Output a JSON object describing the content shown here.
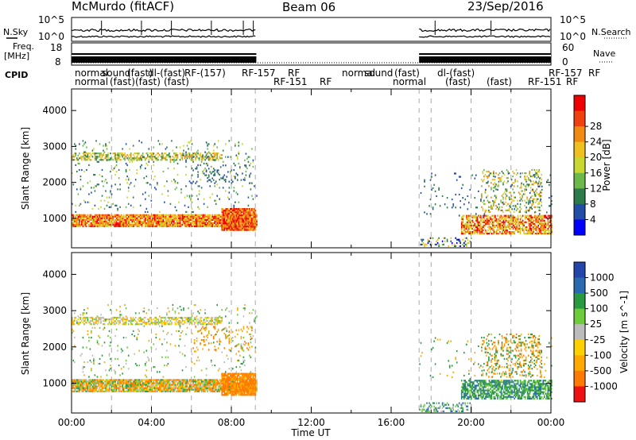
{
  "header": {
    "station": "McMurdo (fitACF)",
    "beam": "Beam 06",
    "date": "23/Sep/2016"
  },
  "side_labels": {
    "nsky": "N.Sky",
    "nsearch": "N.Search",
    "freq_l1": "Freq.",
    "freq_l2": "[MHz]",
    "nave": "Nave",
    "cpid": "CPID",
    "exp_top": "10^5",
    "exp_bot": "10^0"
  },
  "noise_panel": {
    "left_ticks": [
      "10^5",
      "10^0"
    ],
    "right_ticks": [
      "10^5",
      "10^0"
    ]
  },
  "freq_panel": {
    "left_ticks": [
      "18",
      "8"
    ],
    "right_ticks": [
      "60",
      "0"
    ]
  },
  "cpid_rows": {
    "row1": [
      "normal",
      "sound",
      "(fast)",
      "dl-(fast)",
      "RF-(157)",
      "RF-157",
      "RF",
      "normal",
      "sound",
      "(fast)",
      "dl-(fast)",
      "RF-157",
      "RF"
    ],
    "row2": [
      "normal",
      "(fast)",
      "(fast)",
      "(fast)",
      "RF-151",
      "RF",
      "normal",
      "(fast)",
      "(fast)",
      "RF-151",
      "RF"
    ]
  },
  "colors": {
    "power_scale": [
      "#0000ff",
      "#224ea8",
      "#2d7a4a",
      "#6cb84a",
      "#c8d830",
      "#f0c020",
      "#f08a10",
      "#f04010",
      "#ee0000"
    ],
    "velocity_scale": [
      "#ee1111",
      "#ff7a00",
      "#ffa800",
      "#ffd000",
      "#bcbcbc",
      "#6dcc3a",
      "#2a9a40",
      "#2a6ab0",
      "#2246aa"
    ]
  },
  "chart_data": [
    {
      "type": "heatmap",
      "title": "Power",
      "xlabel": "Time UT",
      "ylabel": "Slant Range [km]",
      "x_ticks": [
        "00:00",
        "04:00",
        "08:00",
        "12:00",
        "16:00",
        "20:00",
        "00:00"
      ],
      "y_ticks": [
        1000,
        2000,
        3000,
        4000
      ],
      "ylim": [
        180,
        4600
      ],
      "xlim_hours": [
        0,
        24
      ],
      "colorbar_label": "Power [dB]",
      "colorbar_ticks": [
        4,
        8,
        12,
        16,
        20,
        24,
        28
      ],
      "data_gap_hours": [
        9.25,
        17.4
      ]
    },
    {
      "type": "heatmap",
      "title": "Velocity",
      "xlabel": "Time UT",
      "ylabel": "Slant Range [km]",
      "x_ticks": [
        "00:00",
        "04:00",
        "08:00",
        "12:00",
        "16:00",
        "20:00",
        "00:00"
      ],
      "y_ticks": [
        1000,
        2000,
        3000,
        4000
      ],
      "ylim": [
        180,
        4600
      ],
      "xlim_hours": [
        0,
        24
      ],
      "colorbar_label": "Velocity [m s^-1]",
      "colorbar_ticks": [
        1000,
        500,
        100,
        25,
        -25,
        -100,
        -500,
        -1000
      ],
      "data_gap_hours": [
        9.25,
        17.4
      ]
    }
  ]
}
